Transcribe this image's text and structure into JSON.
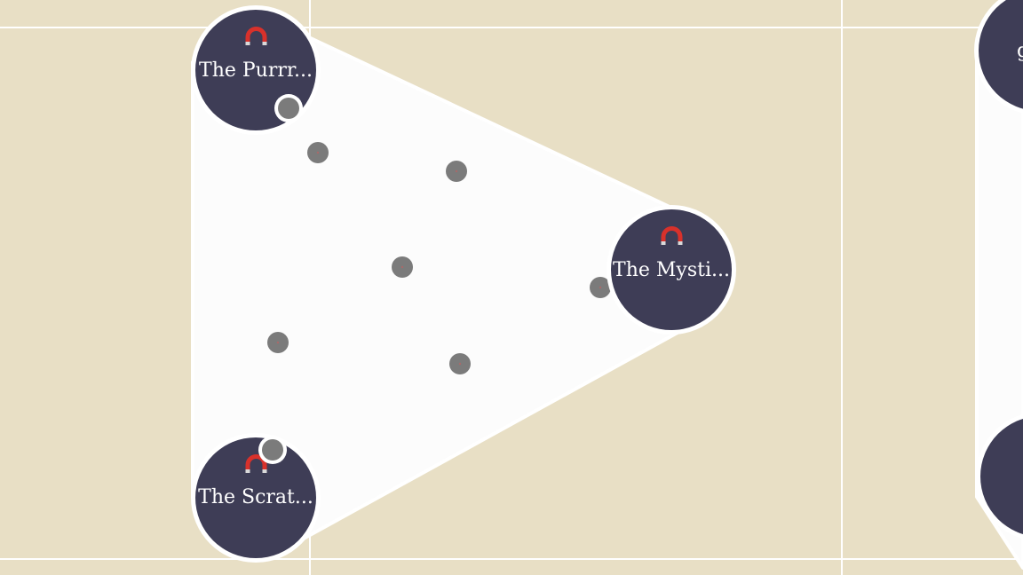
{
  "canvas": {
    "background": "#e8dfc5",
    "region_fill": "#fcfcfc",
    "node_color": "#3e3d56",
    "magnet_color": "#d8312b",
    "point_color": "#7b7b7b"
  },
  "nodes": [
    {
      "label": "The Purrr...",
      "icon": "magnet-icon"
    },
    {
      "label": "The Mysti...",
      "icon": "magnet-icon"
    },
    {
      "label": "The Scrat...",
      "icon": "magnet-icon"
    }
  ],
  "partial_nodes": [
    {
      "label": "g"
    }
  ],
  "point_count": 9
}
